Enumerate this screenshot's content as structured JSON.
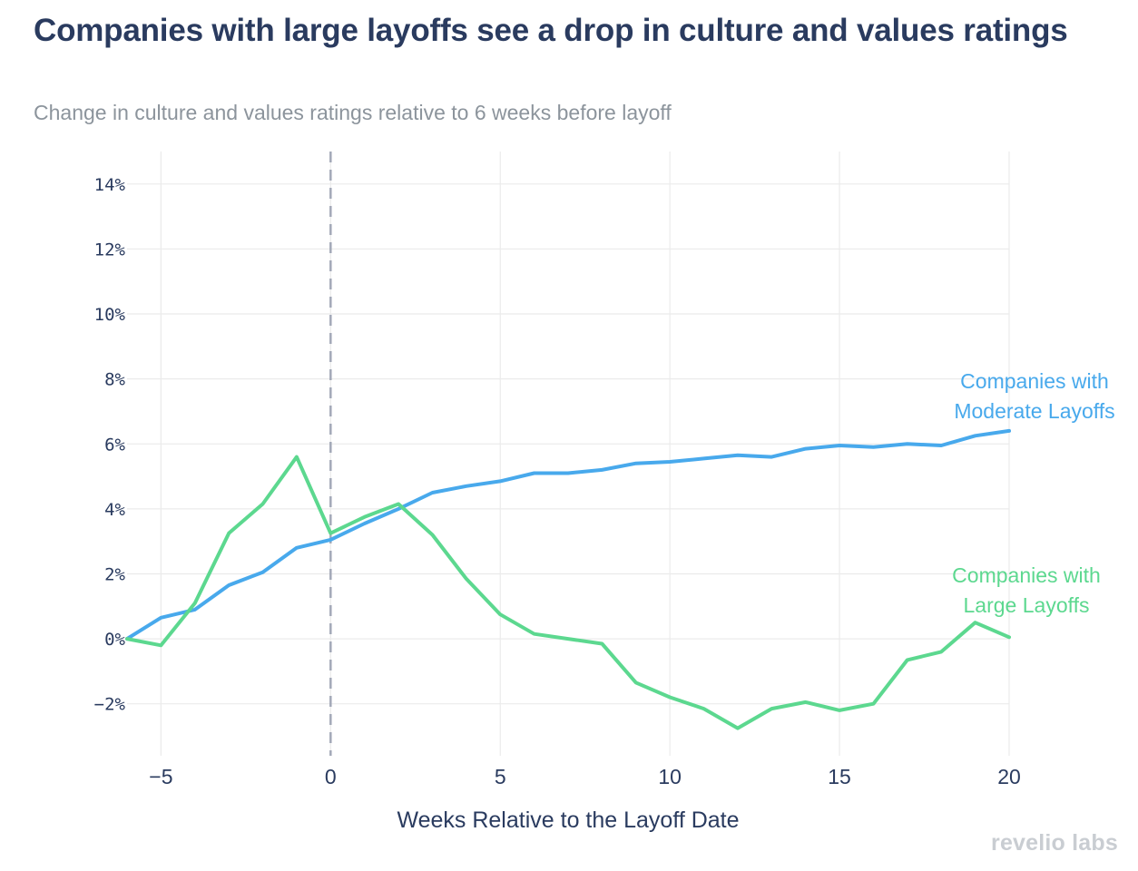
{
  "chart_data": {
    "type": "line",
    "title": "Companies with large layoffs see a drop in culture and values ratings",
    "subtitle": "Change in culture and values ratings relative to 6 weeks before layoff",
    "xlabel": "Weeks Relative to the Layoff Date",
    "ylabel": "",
    "xlim": [
      -6,
      20
    ],
    "ylim": [
      -3.6,
      15
    ],
    "x_ticks": [
      -5,
      0,
      5,
      10,
      15,
      20
    ],
    "x_tick_labels": [
      "−5",
      "0",
      "5",
      "10",
      "15",
      "20"
    ],
    "y_ticks": [
      -2,
      0,
      2,
      4,
      6,
      8,
      10,
      12,
      14
    ],
    "y_tick_labels": [
      "−2%",
      "0%",
      "2%",
      "4%",
      "6%",
      "8%",
      "10%",
      "12%",
      "14%"
    ],
    "reference_line_x": 0,
    "x": [
      -6,
      -5,
      -4,
      -3,
      -2,
      -1,
      0,
      1,
      2,
      3,
      4,
      5,
      6,
      7,
      8,
      9,
      10,
      11,
      12,
      13,
      14,
      15,
      16,
      17,
      18,
      19,
      20
    ],
    "series": [
      {
        "name": "Companies with Moderate Layoffs",
        "label_lines": [
          "Companies with",
          "Moderate Layoffs"
        ],
        "color": "#48a9ec",
        "values": [
          0.0,
          0.65,
          0.9,
          1.65,
          2.05,
          2.8,
          3.05,
          3.55,
          4.0,
          4.5,
          4.7,
          4.85,
          5.1,
          5.1,
          5.2,
          5.4,
          5.45,
          5.55,
          5.65,
          5.6,
          5.85,
          5.95,
          5.9,
          6.0,
          5.95,
          6.25,
          6.4
        ]
      },
      {
        "name": "Companies with Large Layoffs",
        "label_lines": [
          "Companies with",
          "Large Layoffs"
        ],
        "color": "#5cd88f",
        "values": [
          0.0,
          -0.2,
          1.1,
          3.25,
          4.15,
          5.6,
          3.25,
          3.75,
          4.15,
          3.2,
          1.85,
          0.75,
          0.15,
          0.0,
          -0.15,
          -1.35,
          -1.8,
          -2.15,
          -2.75,
          -2.15,
          -1.95,
          -2.2,
          -2.0,
          -0.65,
          -0.4,
          0.5,
          0.05
        ]
      }
    ]
  },
  "brand": {
    "name": "revelio labs"
  }
}
